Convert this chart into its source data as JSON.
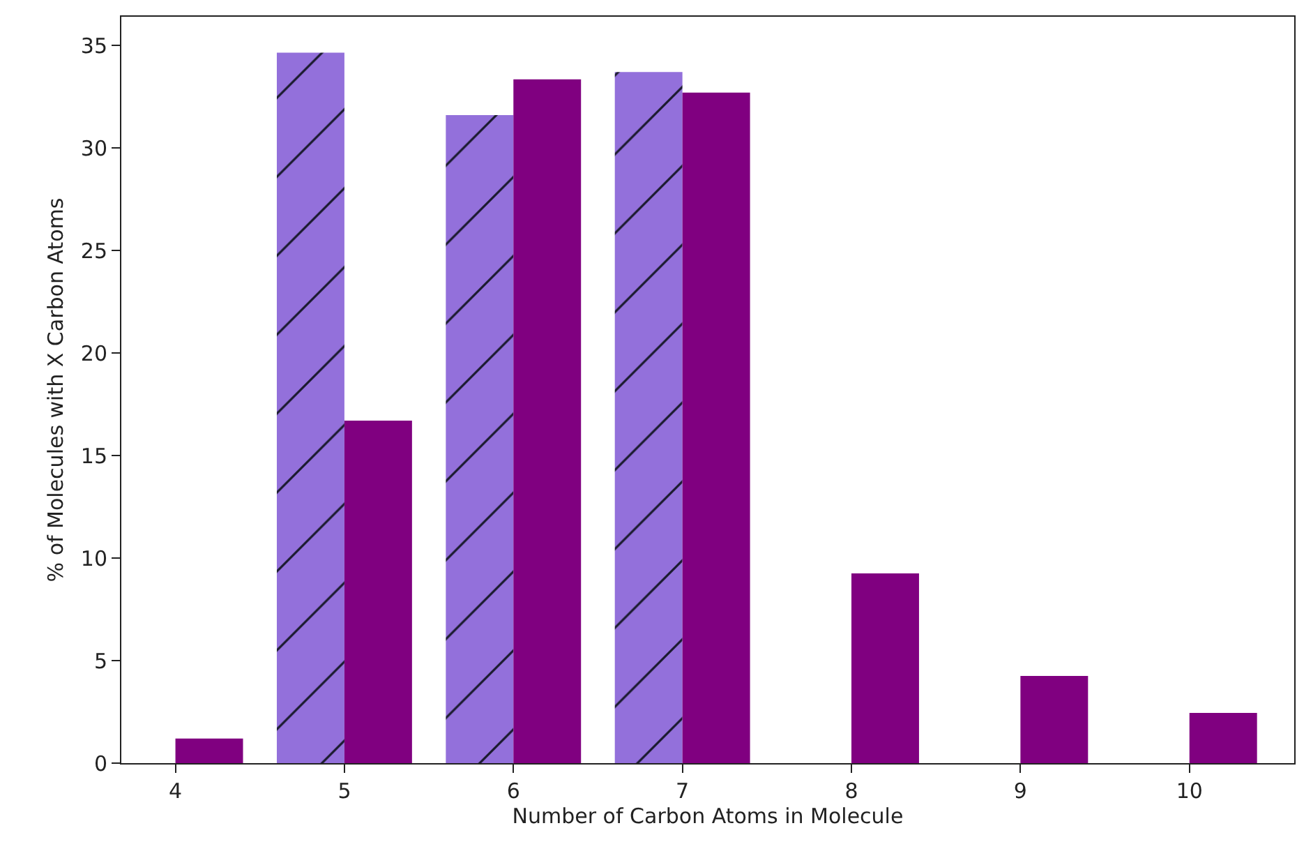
{
  "chart_data": {
    "type": "bar",
    "xlabel": "Number of Carbon Atoms in Molecule",
    "ylabel": "% of Molecules with X Carbon Atoms",
    "series": [
      {
        "color": "#9370db",
        "x": [
          5,
          6,
          7
        ],
        "values": [
          34.65,
          31.6,
          33.7
        ]
      },
      {
        "color": "#800080",
        "x": [
          4,
          5,
          6,
          7,
          8,
          9,
          10
        ],
        "values": [
          1.2,
          16.7,
          33.35,
          32.7,
          9.25,
          4.25,
          2.45
        ]
      }
    ],
    "xlim": [
      3.68,
      10.62
    ],
    "xticks": [
      4,
      5,
      6,
      7,
      8,
      9,
      10
    ],
    "ylim": [
      0,
      36.4
    ],
    "yticks": [
      0,
      5,
      10,
      15,
      20,
      25,
      30,
      35
    ],
    "grid": false
  }
}
